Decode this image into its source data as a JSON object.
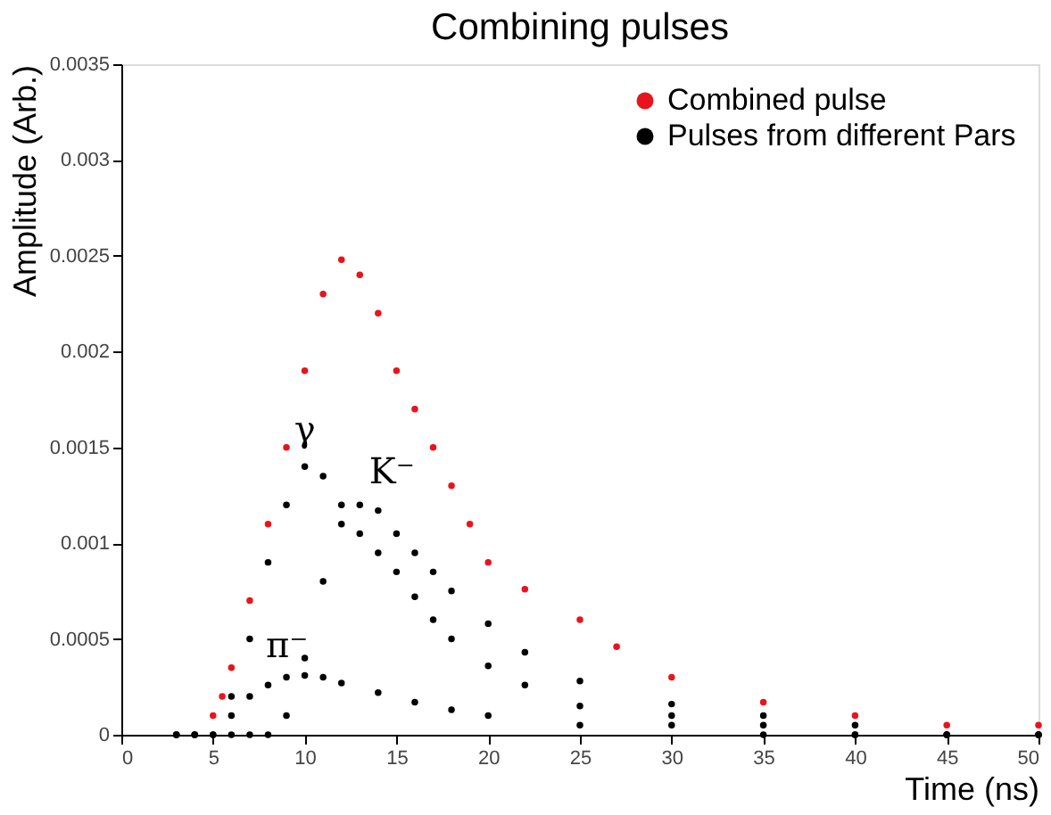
{
  "chart_data": {
    "type": "scatter",
    "title": "Combining pulses",
    "xlabel": "Time (ns)",
    "ylabel": "Amplitude (Arb.)",
    "xlim": [
      0,
      50
    ],
    "xticks": [
      0,
      5,
      10,
      15,
      20,
      25,
      30,
      35,
      40,
      45,
      50
    ],
    "ylim": [
      0,
      0.0035
    ],
    "yticks": [
      0,
      0.0005,
      0.001,
      0.0015,
      0.002,
      0.0025,
      0.003,
      0.0035
    ],
    "marker": "circle",
    "grid": false,
    "legend": "top right",
    "series": [
      {
        "name": "Combined pulse",
        "color": "#e8141c",
        "x": [
          3,
          4,
          5,
          5.5,
          6,
          7,
          8,
          9,
          10,
          11,
          12,
          13,
          14,
          15,
          16,
          17,
          18,
          19,
          20,
          22,
          25,
          27,
          30,
          35,
          40,
          45,
          50
        ],
        "values": [
          0,
          0,
          0.0001,
          0.0002,
          0.00035,
          0.0007,
          0.0011,
          0.0015,
          0.0019,
          0.0023,
          0.00248,
          0.0024,
          0.0022,
          0.0019,
          0.0017,
          0.0015,
          0.0013,
          0.0011,
          0.0009,
          0.00076,
          0.0006,
          0.00046,
          0.0003,
          0.00017,
          0.0001,
          5e-05,
          5e-05
        ]
      },
      {
        "name": "Pulses from different Pars",
        "color": "#000000",
        "x": [
          3,
          4,
          5,
          6,
          7,
          8,
          9,
          10,
          11,
          12,
          13,
          14,
          15,
          16,
          17,
          18,
          20,
          22,
          25,
          30,
          35,
          40,
          45,
          50
        ],
        "values": [
          0,
          0,
          0,
          0.0002,
          0.0005,
          0.0009,
          0.0012,
          0.0014,
          0.00135,
          0.0012,
          0.00105,
          0.00095,
          0.00085,
          0.00072,
          0.0006,
          0.0005,
          0.00036,
          0.00026,
          0.00015,
          0.0001,
          5e-05,
          0,
          0,
          0
        ]
      },
      {
        "color": "#000000",
        "x": [
          6,
          7,
          8,
          9,
          10,
          11,
          12,
          13,
          14,
          15,
          16,
          17,
          18,
          20,
          22,
          25,
          30,
          35,
          40,
          45,
          50
        ],
        "values": [
          0,
          0,
          0,
          0.0001,
          0.0004,
          0.0008,
          0.0011,
          0.0012,
          0.00117,
          0.00105,
          0.00095,
          0.00085,
          0.00075,
          0.00058,
          0.00043,
          0.00028,
          0.00016,
          0.0001,
          5e-05,
          0,
          0
        ]
      },
      {
        "color": "#000000",
        "x": [
          3,
          4,
          5,
          6,
          7,
          8,
          9,
          10,
          11,
          12,
          14,
          16,
          18,
          20,
          25,
          30,
          35,
          40,
          45,
          50
        ],
        "values": [
          0,
          0,
          0,
          0.0001,
          0.0002,
          0.00026,
          0.0003,
          0.00031,
          0.0003,
          0.00027,
          0.00022,
          0.00017,
          0.00013,
          0.0001,
          5e-05,
          5e-05,
          0,
          0,
          0,
          0
        ]
      }
    ],
    "annotations": [
      "γ",
      "K⁻",
      "π⁻"
    ]
  }
}
